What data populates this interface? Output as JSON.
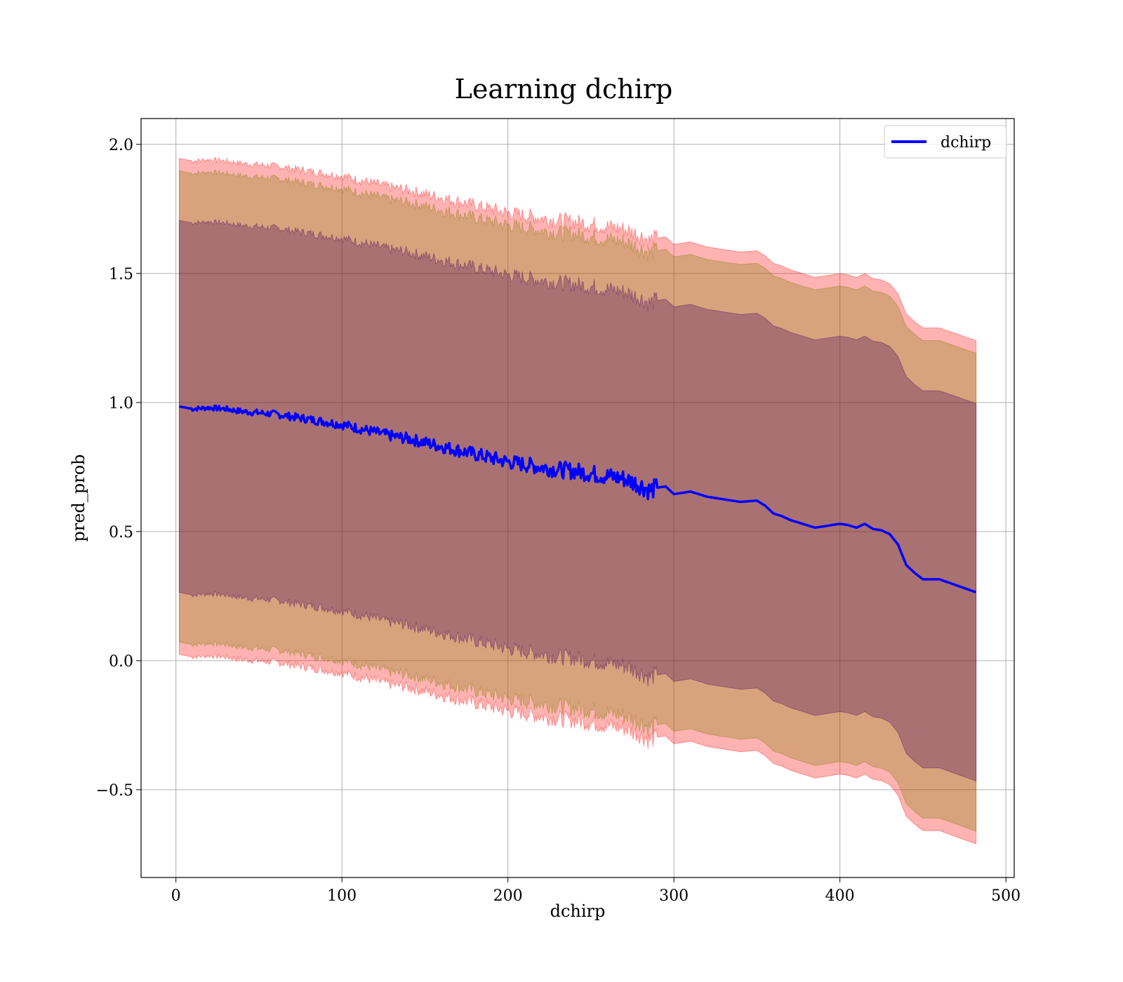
{
  "chart_data": {
    "type": "line",
    "title": "Learning dchirp",
    "xlabel": "dchirp",
    "ylabel": "pred_prob",
    "xlim": [
      -21,
      505
    ],
    "ylim": [
      -0.84,
      2.1
    ],
    "xticks": [
      0,
      100,
      200,
      300,
      400,
      500
    ],
    "yticks": [
      -0.5,
      0.0,
      0.5,
      1.0,
      1.5,
      2.0
    ],
    "xtick_labels": [
      "0",
      "100",
      "200",
      "300",
      "400",
      "500"
    ],
    "ytick_labels": [
      "−0.5",
      "0.0",
      "0.5",
      "1.0",
      "1.5",
      "2.0"
    ],
    "grid": true,
    "legend": {
      "position": "top-right",
      "entries": [
        {
          "label": "dchirp",
          "color": "#0000ff"
        }
      ]
    },
    "series": [
      {
        "name": "dchirp",
        "color": "#0000ff",
        "x": [
          2,
          10,
          20,
          30,
          40,
          50,
          60,
          70,
          80,
          90,
          100,
          110,
          120,
          130,
          140,
          150,
          160,
          170,
          180,
          190,
          200,
          210,
          220,
          230,
          240,
          250,
          260,
          270,
          280,
          285,
          290,
          295,
          300,
          310,
          320,
          330,
          340,
          350,
          355,
          360,
          365,
          370,
          380,
          385,
          390,
          395,
          400,
          405,
          410,
          415,
          420,
          425,
          430,
          435,
          440,
          445,
          450,
          460,
          482
        ],
        "values": [
          0.985,
          0.975,
          0.98,
          0.975,
          0.965,
          0.96,
          0.955,
          0.945,
          0.935,
          0.925,
          0.915,
          0.9,
          0.885,
          0.87,
          0.86,
          0.845,
          0.83,
          0.815,
          0.8,
          0.785,
          0.77,
          0.76,
          0.75,
          0.74,
          0.735,
          0.725,
          0.715,
          0.705,
          0.68,
          0.66,
          0.67,
          0.675,
          0.645,
          0.655,
          0.635,
          0.625,
          0.615,
          0.62,
          0.6,
          0.57,
          0.56,
          0.545,
          0.525,
          0.515,
          0.52,
          0.525,
          0.53,
          0.525,
          0.515,
          0.53,
          0.51,
          0.505,
          0.49,
          0.45,
          0.37,
          0.34,
          0.315,
          0.315,
          0.265
        ]
      }
    ],
    "bands": [
      {
        "color": "#ff0000",
        "alpha": 0.3,
        "sigma": 2.0,
        "comment_hidden": ""
      },
      {
        "color": "#7f7f00",
        "alpha": 0.3,
        "sigma": 1.9
      },
      {
        "color": "#400060",
        "alpha": 0.3,
        "sigma": 1.5
      }
    ]
  }
}
